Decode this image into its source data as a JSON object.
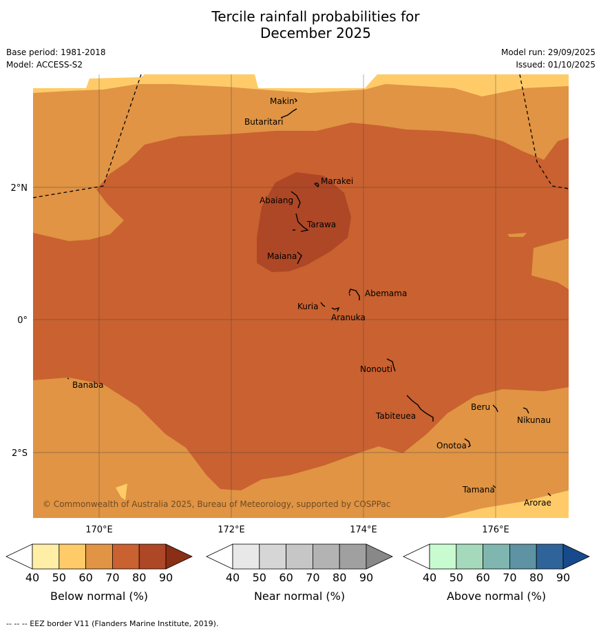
{
  "title": {
    "line1": "Tercile rainfall probabilities for",
    "line2": "December 2025"
  },
  "meta": {
    "base_period": "Base period: 1981-2018",
    "model": "Model: ACCESS-S2",
    "model_run": "Model run: 29/09/2025",
    "issued": "Issued: 01/10/2025"
  },
  "map": {
    "latitude_labels": [
      "2°N",
      "0°",
      "2°S"
    ],
    "longitude_labels": [
      "170°E",
      "172°E",
      "174°E",
      "176°E"
    ],
    "places": [
      "Makin",
      "Butaritari",
      "Marakei",
      "Abaiang",
      "Tarawa",
      "Maiana",
      "Abemama",
      "Kuria",
      "Aranuka",
      "Nonouti",
      "Banaba",
      "Beru",
      "Nikunau",
      "Tabiteuea",
      "Onotoa",
      "Tamana",
      "Arorae"
    ],
    "copyright": "© Commonwealth of Australia 2025, Bureau of Meteorology, supported by COSPPac",
    "colors": {
      "lt50": "#ffffff",
      "p50_60": "#fecb68",
      "p60_70": "#e09444",
      "p70_80": "#c96130",
      "p80_90": "#ad4726",
      "grid": "#444444"
    }
  },
  "colorbars": [
    {
      "label": "Below normal (%)",
      "ticks": [
        "40",
        "50",
        "60",
        "70",
        "80",
        "90"
      ],
      "colors": [
        "#ffffff",
        "#ffeea6",
        "#fecb68",
        "#e09444",
        "#c96130",
        "#ad4726",
        "#8b2e16"
      ]
    },
    {
      "label": "Near normal (%)",
      "ticks": [
        "40",
        "50",
        "60",
        "70",
        "80",
        "90"
      ],
      "colors": [
        "#ffffff",
        "#e8e8e8",
        "#d6d6d6",
        "#c6c6c6",
        "#b3b3b3",
        "#a0a0a0",
        "#888888"
      ]
    },
    {
      "label": "Above normal (%)",
      "ticks": [
        "40",
        "50",
        "60",
        "70",
        "80",
        "90"
      ],
      "colors": [
        "#ffffff",
        "#c8fcd0",
        "#a5d9bc",
        "#7fb7b0",
        "#5d93a3",
        "#2f649a",
        "#174a8c"
      ]
    }
  ],
  "footer": "--  --  -- EEZ border V11 (Flanders Marine Institute, 2019)."
}
